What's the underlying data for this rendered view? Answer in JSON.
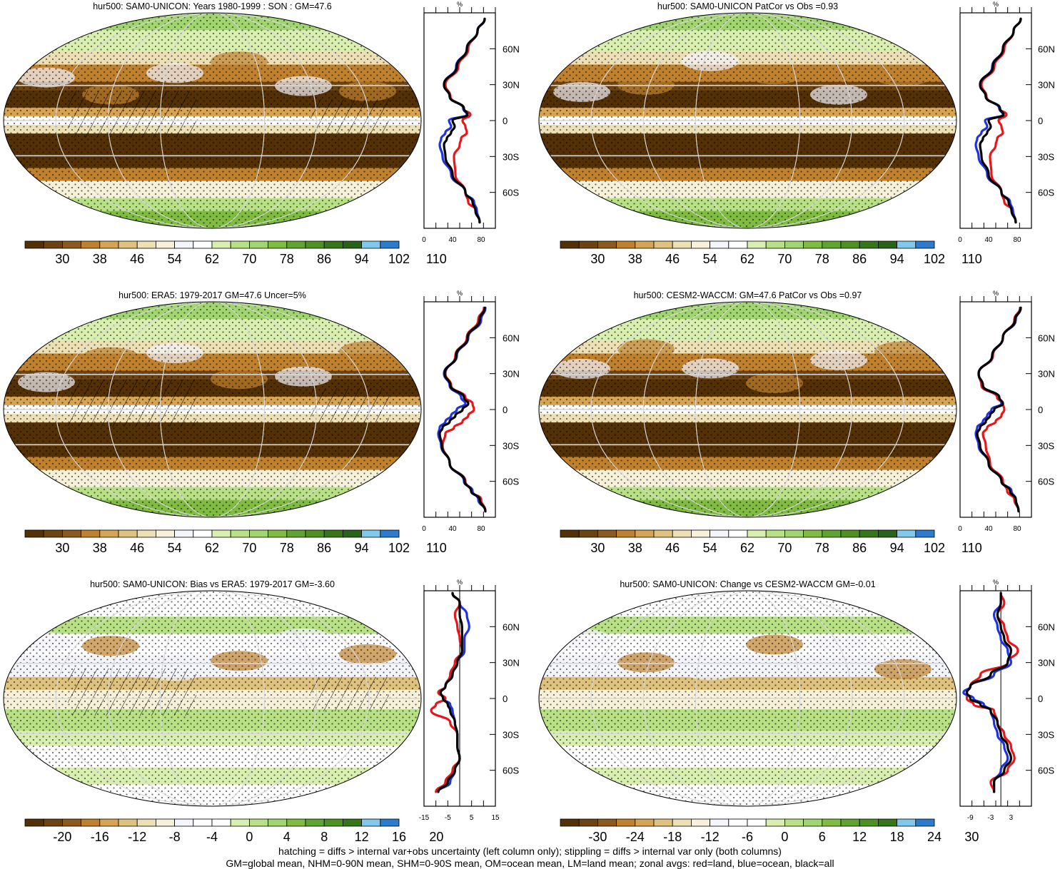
{
  "chart_data": [
    {
      "type": "heatmap",
      "title": "hur500: SAM0-UNICON: Years 1980-1999 : SON : GM=47.6",
      "colorbar": {
        "labels": [
          "30",
          "38",
          "46",
          "54",
          "62",
          "70",
          "78",
          "86",
          "94",
          "102",
          "110"
        ],
        "palette": "abs"
      },
      "zonal": {
        "xticks": [
          "0",
          "40",
          "80"
        ],
        "xlim": [
          0,
          100
        ],
        "unit": "%",
        "yticks": [
          "60N",
          "30N",
          "0",
          "30S",
          "60S"
        ],
        "ylim": [
          -90,
          90
        ],
        "lat": [
          85,
          75,
          60,
          45,
          30,
          20,
          10,
          5,
          0,
          -5,
          -10,
          -15,
          -20,
          -30,
          -45,
          -60,
          -68,
          -75,
          -85
        ],
        "series": [
          {
            "color": "#e8161b",
            "values": [
              85,
              75,
              62,
              48,
              30,
              37,
              55,
              65,
              54,
              58,
              60,
              52,
              50,
              42,
              44,
              58,
              62,
              73,
              78
            ]
          },
          {
            "color": "#1f33e0",
            "values": [
              85,
              75,
              60,
              45,
              28,
              36,
              55,
              60,
              35,
              38,
              30,
              24,
              22,
              26,
              38,
              58,
              70,
              74,
              78
            ]
          },
          {
            "color": "#000000",
            "values": [
              85,
              75,
              60,
              46,
              28,
              36,
              56,
              61,
              40,
              43,
              38,
              32,
              28,
              30,
              40,
              58,
              68,
              72,
              78
            ]
          }
        ]
      }
    },
    {
      "type": "heatmap",
      "title": "hur500: SAM0-UNICON PatCor vs Obs =0.93",
      "colorbar": {
        "labels": [
          "30",
          "38",
          "46",
          "54",
          "62",
          "70",
          "78",
          "86",
          "94",
          "102",
          "110"
        ],
        "palette": "abs"
      },
      "zonal": {
        "xticks": [
          "0",
          "40",
          "80"
        ],
        "xlim": [
          0,
          100
        ],
        "unit": "%",
        "yticks": [
          "60N",
          "30N",
          "0",
          "30S",
          "60S"
        ],
        "ylim": [
          -90,
          90
        ],
        "lat": [
          85,
          75,
          60,
          45,
          30,
          20,
          10,
          5,
          0,
          -5,
          -10,
          -15,
          -20,
          -30,
          -45,
          -60,
          -68,
          -75,
          -85
        ],
        "series": [
          {
            "color": "#e8161b",
            "values": [
              85,
              75,
              62,
              48,
              30,
              37,
              55,
              65,
              54,
              58,
              60,
              52,
              50,
              42,
              44,
              58,
              62,
              73,
              78
            ]
          },
          {
            "color": "#1f33e0",
            "values": [
              85,
              75,
              60,
              45,
              28,
              36,
              55,
              60,
              35,
              38,
              30,
              24,
              22,
              26,
              38,
              58,
              70,
              74,
              78
            ]
          },
          {
            "color": "#000000",
            "values": [
              85,
              75,
              60,
              46,
              28,
              36,
              56,
              61,
              40,
              43,
              38,
              32,
              28,
              30,
              40,
              58,
              68,
              72,
              78
            ]
          }
        ]
      }
    },
    {
      "type": "heatmap",
      "title": "hur500: ERA5: 1979-2017 GM=47.6 Uncer=5%",
      "colorbar": {
        "labels": [
          "30",
          "38",
          "46",
          "54",
          "62",
          "70",
          "78",
          "86",
          "94",
          "102",
          "110"
        ],
        "palette": "abs"
      },
      "zonal": {
        "xticks": [
          "0",
          "40",
          "80"
        ],
        "xlim": [
          0,
          100
        ],
        "unit": "%",
        "yticks": [
          "60N",
          "30N",
          "0",
          "30S",
          "60S"
        ],
        "ylim": [
          -90,
          90
        ],
        "lat": [
          85,
          75,
          60,
          45,
          30,
          20,
          10,
          5,
          0,
          -5,
          -10,
          -15,
          -20,
          -30,
          -45,
          -60,
          -68,
          -75,
          -85
        ],
        "series": [
          {
            "color": "#e8161b",
            "values": [
              84,
              76,
              60,
              44,
              30,
              38,
              58,
              68,
              70,
              62,
              54,
              42,
              30,
              26,
              36,
              58,
              66,
              80,
              86
            ]
          },
          {
            "color": "#1f33e0",
            "values": [
              86,
              80,
              62,
              46,
              28,
              36,
              52,
              58,
              46,
              38,
              30,
              22,
              20,
              24,
              36,
              56,
              68,
              76,
              86
            ]
          },
          {
            "color": "#000000",
            "values": [
              85,
              78,
              61,
              45,
              29,
              37,
              56,
              62,
              54,
              44,
              36,
              26,
              22,
              25,
              36,
              57,
              66,
              78,
              86
            ]
          }
        ]
      }
    },
    {
      "type": "heatmap",
      "title": "hur500: CESM2-WACCM: GM=47.6 PatCor vs Obs =0.97",
      "colorbar": {
        "labels": [
          "30",
          "38",
          "46",
          "54",
          "62",
          "70",
          "78",
          "86",
          "94",
          "102",
          "110"
        ],
        "palette": "abs"
      },
      "zonal": {
        "xticks": [
          "0",
          "40",
          "80"
        ],
        "xlim": [
          0,
          100
        ],
        "unit": "%",
        "yticks": [
          "60N",
          "30N",
          "0",
          "30S",
          "60S"
        ],
        "ylim": [
          -90,
          90
        ],
        "lat": [
          85,
          75,
          60,
          45,
          30,
          20,
          10,
          5,
          0,
          -5,
          -10,
          -15,
          -20,
          -30,
          -45,
          -60,
          -68,
          -75,
          -85
        ],
        "series": [
          {
            "color": "#e8161b",
            "values": [
              84,
              76,
              60,
              46,
              26,
              30,
              52,
              60,
              62,
              58,
              50,
              38,
              32,
              36,
              42,
              60,
              66,
              76,
              82
            ]
          },
          {
            "color": "#1f33e0",
            "values": [
              85,
              78,
              60,
              45,
              26,
              32,
              55,
              58,
              44,
              38,
              32,
              24,
              22,
              26,
              40,
              58,
              72,
              78,
              82
            ]
          },
          {
            "color": "#000000",
            "values": [
              85,
              77,
              60,
              45,
              26,
              32,
              55,
              60,
              48,
              42,
              36,
              28,
              24,
              28,
              40,
              58,
              70,
              78,
              82
            ]
          }
        ]
      }
    },
    {
      "type": "heatmap",
      "title": "hur500: SAM0-UNICON: Bias vs ERA5: 1979-2017  GM=-3.60",
      "colorbar": {
        "labels": [
          "-20",
          "-16",
          "-12",
          "-8",
          "-4",
          "0",
          "4",
          "8",
          "12",
          "16",
          "20"
        ],
        "palette": "bias"
      },
      "zonal": {
        "xticks": [
          "-15",
          "-5",
          "5",
          "15"
        ],
        "xlim": [
          -15,
          15
        ],
        "unit": "%",
        "yticks": [
          "60N",
          "30N",
          "0",
          "30S",
          "60S"
        ],
        "ylim": [
          -90,
          90
        ],
        "lat": [
          88,
          80,
          70,
          60,
          50,
          40,
          30,
          20,
          10,
          5,
          0,
          -5,
          -10,
          -20,
          -30,
          -40,
          -50,
          -60,
          -70,
          -78
        ],
        "series": [
          {
            "color": "#e8161b",
            "values": [
              -3,
              0,
              -2,
              -1,
              0,
              1,
              -2,
              -4,
              -6,
              -9,
              -6,
              -10,
              -12,
              -4,
              -1,
              -1,
              0,
              -3,
              -6,
              -10
            ]
          },
          {
            "color": "#1f33e0",
            "values": [
              -3,
              0,
              3,
              4,
              2,
              2,
              -1,
              -3,
              -6,
              -8,
              -7,
              -4,
              -3,
              -2,
              -1,
              -1,
              0,
              -2,
              -4,
              -9
            ]
          },
          {
            "color": "#000000",
            "values": [
              -3,
              0,
              0,
              1,
              1,
              1,
              -1,
              -3,
              -6,
              -8,
              -7,
              -5,
              -4,
              -2,
              -1,
              -1,
              0,
              -2,
              -5,
              -9
            ]
          }
        ]
      }
    },
    {
      "type": "heatmap",
      "title": "hur500: SAM0-UNICON: Change vs CESM2-WACCM GM=-0.01",
      "colorbar": {
        "labels": [
          "-30",
          "-24",
          "-18",
          "-12",
          "-6",
          "0",
          "6",
          "12",
          "18",
          "24",
          "30"
        ],
        "palette": "bias"
      },
      "zonal": {
        "xticks": [
          "-9",
          "-3",
          "3"
        ],
        "xlim": [
          -12,
          9
        ],
        "unit": "%",
        "yticks": [
          "60N",
          "30N",
          "0",
          "30S",
          "60S"
        ],
        "ylim": [
          -90,
          90
        ],
        "lat": [
          88,
          80,
          70,
          60,
          50,
          40,
          30,
          20,
          10,
          5,
          0,
          -5,
          -10,
          -20,
          -30,
          -40,
          -50,
          -60,
          -70,
          -78
        ],
        "series": [
          {
            "color": "#e8161b",
            "values": [
              0,
              1,
              -1,
              1,
              2,
              5,
              2,
              -6,
              -9,
              -10,
              -10,
              -8,
              -2,
              -1,
              1,
              3,
              4,
              2,
              -3,
              -2
            ]
          },
          {
            "color": "#1f33e0",
            "values": [
              0,
              0,
              -2,
              -1,
              0,
              2,
              3,
              -2,
              -9,
              -11,
              -8,
              -5,
              -3,
              -2,
              -1,
              1,
              2,
              0,
              -2,
              -2
            ]
          },
          {
            "color": "#000000",
            "values": [
              0,
              0,
              -1,
              0,
              1,
              3,
              2,
              -3,
              -9,
              -10,
              -9,
              -6,
              -3,
              -1,
              0,
              2,
              3,
              1,
              -2,
              -2
            ]
          }
        ]
      }
    }
  ],
  "footnote": {
    "line1": "hatching = diffs > internal var+obs uncertainty (left column only); stippling = diffs > internal var only (both columns)",
    "line2": "GM=global mean, NHM=0-90N mean, SHM=0-90S mean, OM=ocean mean, LM=land mean; zonal avgs: red=land, blue=ocean, black=all"
  },
  "colors": {
    "abs_palette": [
      "#543005",
      "#6e4312",
      "#8c5a1e",
      "#bf812d",
      "#d6a452",
      "#dfc27d",
      "#ede0b4",
      "#f6f1d8",
      "#f4f4fb",
      "#ffffff",
      "#d9efb0",
      "#b8e186",
      "#a1d56f",
      "#7fbc41",
      "#5fa331",
      "#4d9221",
      "#357718",
      "#276419",
      "#7fc8ee",
      "#2b7bce"
    ],
    "bias_palette": [
      "#543005",
      "#6e4312",
      "#8c5a1e",
      "#bf812d",
      "#d6a452",
      "#dfc27d",
      "#ede0b4",
      "#f6f1d8",
      "#f4f4fb",
      "#ffffff",
      "#ffffff",
      "#d9efb0",
      "#b8e186",
      "#a1d56f",
      "#7fbc41",
      "#5fa331",
      "#4d9221",
      "#357718",
      "#7fc8ee",
      "#2b7bce"
    ]
  }
}
